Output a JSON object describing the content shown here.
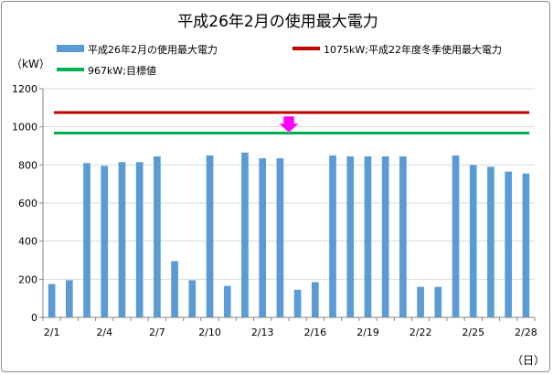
{
  "chart_data": {
    "type": "bar",
    "title": "平成26年2月の使用最大電力",
    "ylabel": "（kW）",
    "xlabel": "（日）",
    "ylim": [
      0,
      1200
    ],
    "yticks": [
      0,
      200,
      400,
      600,
      800,
      1000,
      1200
    ],
    "grid": true,
    "categories": [
      "2/1",
      "2/2",
      "2/3",
      "2/4",
      "2/5",
      "2/6",
      "2/7",
      "2/8",
      "2/9",
      "2/10",
      "2/11",
      "2/12",
      "2/13",
      "2/14",
      "2/15",
      "2/16",
      "2/17",
      "2/18",
      "2/19",
      "2/20",
      "2/21",
      "2/22",
      "2/23",
      "2/24",
      "2/25",
      "2/26",
      "2/27",
      "2/28"
    ],
    "x_tick_labels": [
      "2/1",
      "2/4",
      "2/7",
      "2/10",
      "2/13",
      "2/16",
      "2/19",
      "2/22",
      "2/25",
      "2/28"
    ],
    "series": [
      {
        "name": "平成26年2月の使用最大電力",
        "color": "#5b9bd5",
        "values": [
          175,
          195,
          810,
          795,
          815,
          815,
          845,
          295,
          195,
          850,
          165,
          865,
          835,
          835,
          145,
          185,
          850,
          845,
          845,
          845,
          845,
          160,
          160,
          850,
          800,
          790,
          765,
          755
        ]
      }
    ],
    "reference_lines": [
      {
        "name": "1075kW;平成22年度冬季使用最大電力",
        "value": 1075,
        "color": "#c00000"
      },
      {
        "name": "967kW;目標値",
        "value": 967,
        "color": "#00b050"
      }
    ],
    "annotations": [
      {
        "type": "arrow-down",
        "category": "2/14",
        "color": "#ff00ff"
      }
    ],
    "legend_position": "top"
  }
}
